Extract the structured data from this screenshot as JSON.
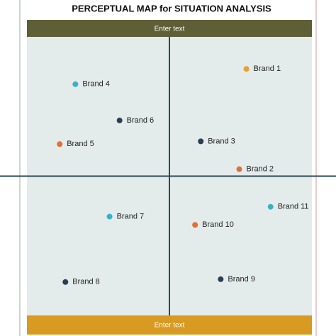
{
  "chart_data": {
    "type": "scatter",
    "title": "PERCEPTUAL MAP for SITUATION ANALYSIS",
    "top_label": "Enter text",
    "bottom_label": "Enter text",
    "xlim": [
      -10,
      10
    ],
    "ylim": [
      -10,
      10
    ],
    "points": [
      {
        "name": "Brand 1",
        "x": 5.4,
        "y": 7.7,
        "color": "#e8a030"
      },
      {
        "name": "Brand 2",
        "x": 4.9,
        "y": 0.5,
        "color": "#e07038"
      },
      {
        "name": "Brand 3",
        "x": 2.2,
        "y": 2.5,
        "color": "#2a3f55"
      },
      {
        "name": "Brand 4",
        "x": -6.6,
        "y": 6.6,
        "color": "#3ab0c8"
      },
      {
        "name": "Brand 5",
        "x": -7.7,
        "y": 2.3,
        "color": "#e07038"
      },
      {
        "name": "Brand 6",
        "x": -3.5,
        "y": 4.0,
        "color": "#2a3f55"
      },
      {
        "name": "Brand 7",
        "x": -4.2,
        "y": -2.9,
        "color": "#3ab0c8"
      },
      {
        "name": "Brand 8",
        "x": -7.3,
        "y": -7.6,
        "color": "#2a3f55"
      },
      {
        "name": "Brand 9",
        "x": 3.6,
        "y": -7.4,
        "color": "#2a3f55"
      },
      {
        "name": "Brand 10",
        "x": 1.8,
        "y": -3.5,
        "color": "#e07038"
      },
      {
        "name": "Brand 11",
        "x": 7.1,
        "y": -2.2,
        "color": "#3ab0c8"
      }
    ]
  }
}
